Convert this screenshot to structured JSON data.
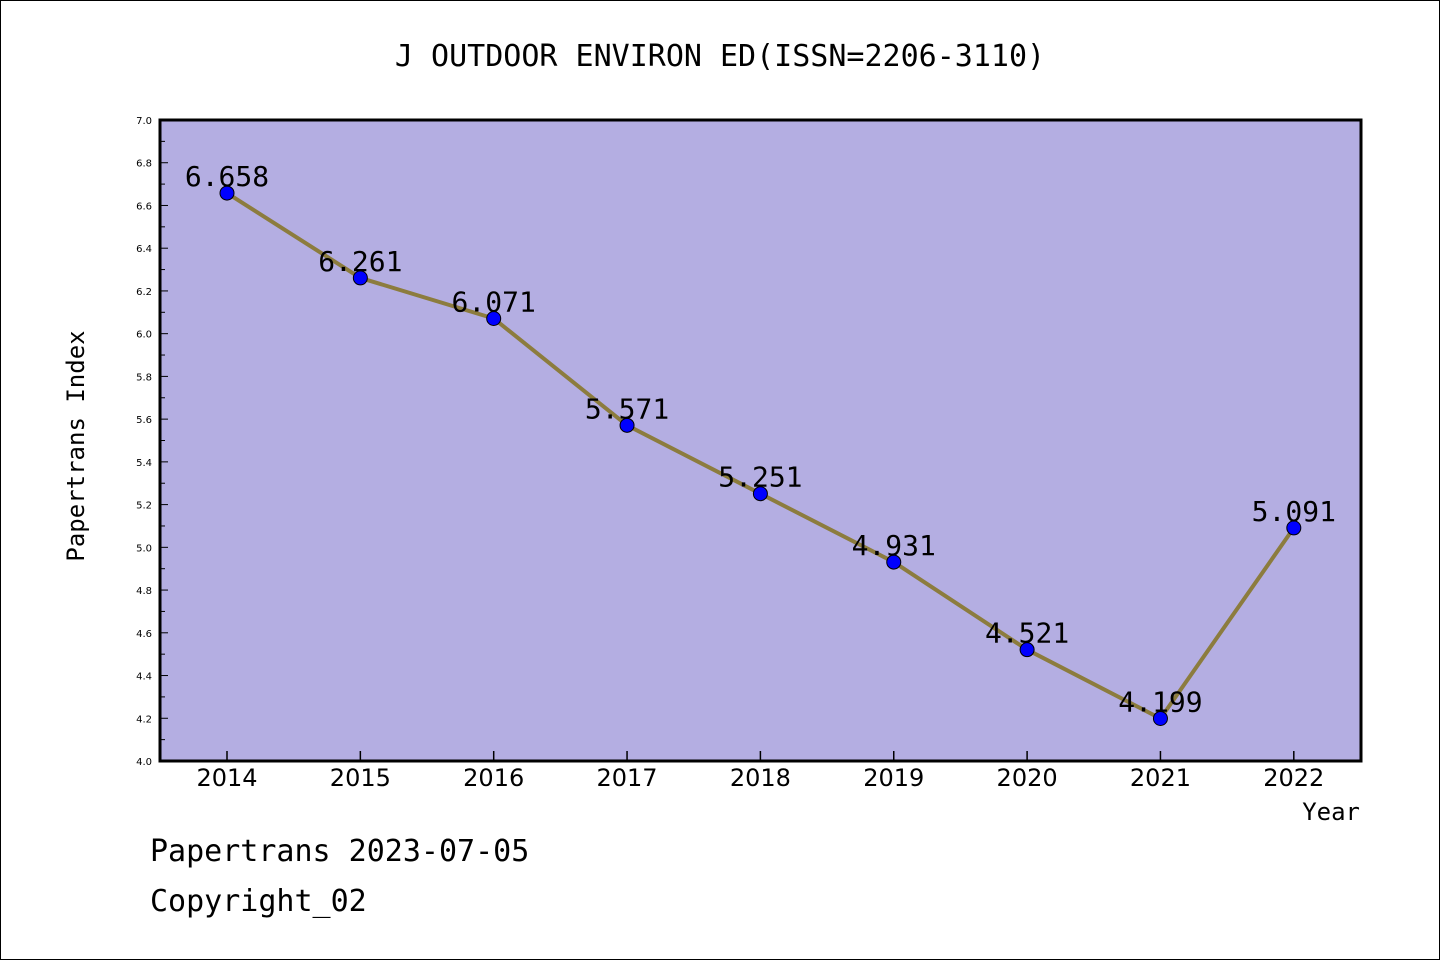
{
  "chart_data": {
    "type": "line",
    "title": "J OUTDOOR ENVIRON ED(ISSN=2206-3110)",
    "xlabel": "Year",
    "ylabel": "Papertrans Index",
    "categories": [
      "2014",
      "2015",
      "2016",
      "2017",
      "2018",
      "2019",
      "2020",
      "2021",
      "2022"
    ],
    "values": [
      6.658,
      6.261,
      6.071,
      5.571,
      5.251,
      4.931,
      4.521,
      4.199,
      5.091
    ],
    "data_labels": [
      "6.658",
      "6.261",
      "6.071",
      "5.571",
      "5.251",
      "4.931",
      "4.521",
      "4.199",
      "5.091"
    ],
    "ylim": [
      4.0,
      7.0
    ],
    "yticks": [
      "4.0",
      "4.2",
      "4.4",
      "4.6",
      "4.8",
      "5.0",
      "5.2",
      "5.4",
      "5.6",
      "5.8",
      "6.0",
      "6.2",
      "6.4",
      "6.6",
      "6.8",
      "7.0"
    ],
    "grid": false,
    "colors": {
      "plot_background": "#b4aee2",
      "line": "#8c7c3e",
      "marker": "#0000ff",
      "axis": "#000000"
    }
  },
  "footer": {
    "line1": "Papertrans 2023-07-05",
    "line2": "Copyright_02"
  }
}
